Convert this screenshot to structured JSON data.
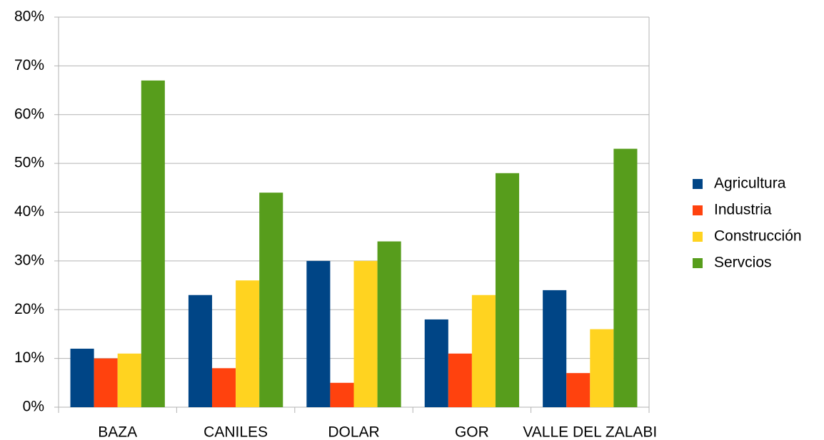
{
  "chart_data": {
    "type": "bar",
    "categories": [
      "BAZA",
      "CANILES",
      "DOLAR",
      "GOR",
      "VALLE DEL ZALABI"
    ],
    "series": [
      {
        "name": "Agricultura",
        "color": "#004586",
        "values": [
          12,
          23,
          30,
          18,
          24
        ]
      },
      {
        "name": "Industria",
        "color": "#ff420e",
        "values": [
          10,
          8,
          5,
          11,
          7
        ]
      },
      {
        "name": "Construcción",
        "color": "#ffd320",
        "values": [
          11,
          26,
          30,
          23,
          16
        ]
      },
      {
        "name": "Servcios",
        "color": "#579d1c",
        "values": [
          67,
          44,
          34,
          48,
          53
        ]
      }
    ],
    "ylim": [
      0,
      80
    ],
    "yticks": [
      {
        "value": 0,
        "label": "0%"
      },
      {
        "value": 10,
        "label": "10%"
      },
      {
        "value": 20,
        "label": "20%"
      },
      {
        "value": 30,
        "label": "30%"
      },
      {
        "value": 40,
        "label": "40%"
      },
      {
        "value": 50,
        "label": "50%"
      },
      {
        "value": 60,
        "label": "60%"
      },
      {
        "value": 70,
        "label": "70%"
      },
      {
        "value": 80,
        "label": "80%"
      }
    ],
    "grid": true,
    "legend": "right"
  }
}
